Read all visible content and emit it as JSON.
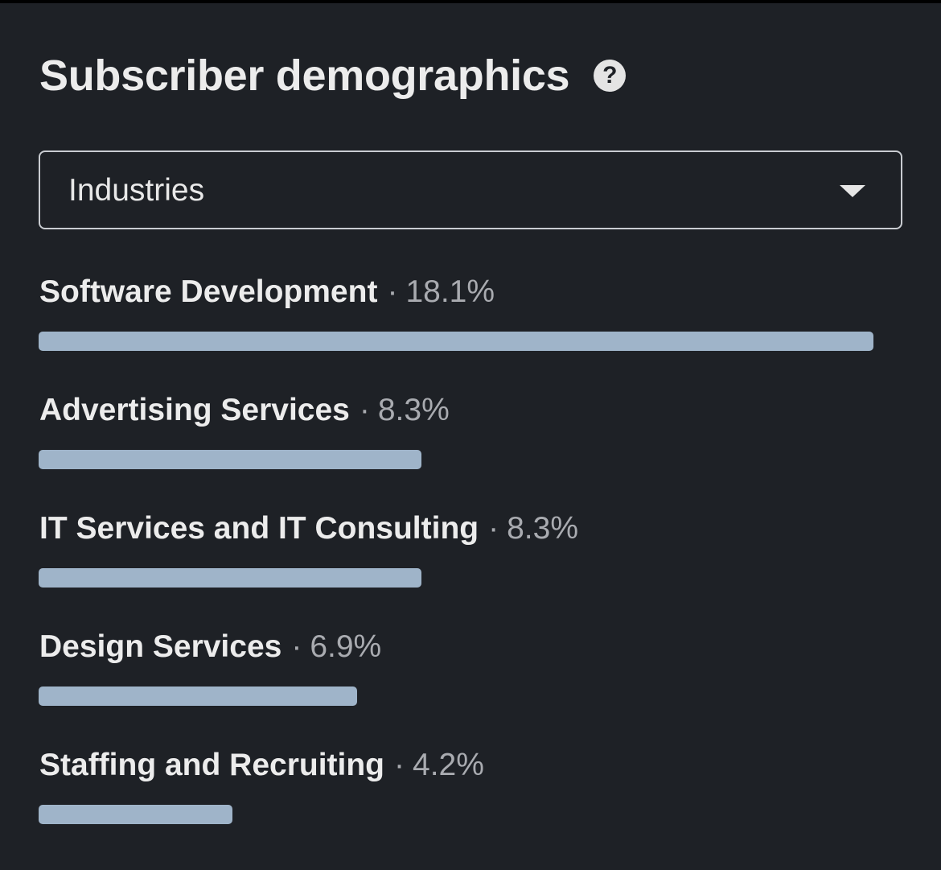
{
  "header": {
    "title": "Subscriber demographics",
    "help_icon": "question-circle-icon"
  },
  "filter": {
    "selected": "Industries",
    "icon": "chevron-down-icon"
  },
  "colors": {
    "background": "#1e2126",
    "bar": "#9fb4c9",
    "secondary_text": "#a9abb0"
  },
  "industries": [
    {
      "name": "Software Development",
      "separator": "·",
      "percent_label": "18.1%",
      "percent": 18.1
    },
    {
      "name": "Advertising Services",
      "separator": "·",
      "percent_label": "8.3%",
      "percent": 8.3
    },
    {
      "name": "IT Services and IT Consulting",
      "separator": "·",
      "percent_label": "8.3%",
      "percent": 8.3
    },
    {
      "name": "Design Services",
      "separator": "·",
      "percent_label": "6.9%",
      "percent": 6.9
    },
    {
      "name": "Staffing and Recruiting",
      "separator": "·",
      "percent_label": "4.2%",
      "percent": 4.2
    }
  ]
}
